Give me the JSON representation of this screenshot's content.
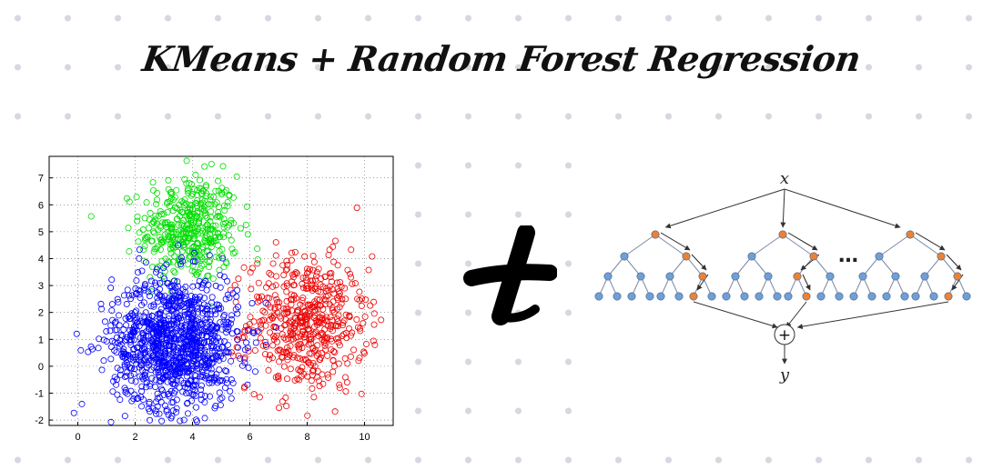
{
  "title": "KMeans + Random Forest Regression",
  "scatter": {
    "chart_data": {
      "type": "scatter",
      "xlim": [
        -1,
        11
      ],
      "ylim": [
        -2.2,
        7.8
      ],
      "xticks": [
        "0",
        "2",
        "4",
        "6",
        "8",
        "10"
      ],
      "yticks": [
        "-2",
        "-1",
        "0",
        "1",
        "2",
        "3",
        "4",
        "5",
        "6",
        "7"
      ],
      "grid": true,
      "series": [
        {
          "color": "#0000ff",
          "center": [
            3.4,
            0.9
          ],
          "spread": [
            1.1,
            1.25
          ],
          "count": 1100
        },
        {
          "color": "#00dd00",
          "center": [
            3.9,
            5.1
          ],
          "spread": [
            0.85,
            1.0
          ],
          "count": 420
        },
        {
          "color": "#ee0000",
          "center": [
            8.0,
            1.6
          ],
          "spread": [
            1.05,
            1.25
          ],
          "count": 520
        }
      ]
    }
  },
  "plus": "+",
  "diagram": {
    "input_label": "x",
    "output_label": "y",
    "combine_symbol": "+",
    "ellipsis": "…",
    "node_color": "#6f9fd8",
    "path_color": "#e8833a",
    "tree_count": 3
  }
}
